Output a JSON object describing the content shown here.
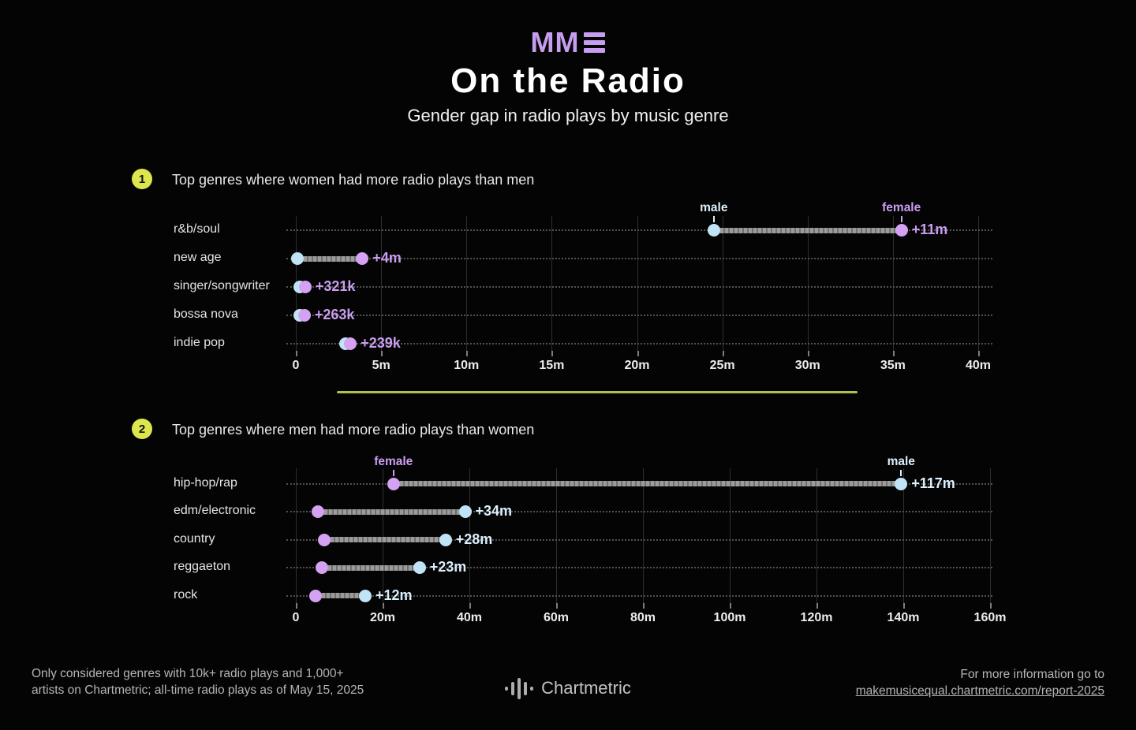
{
  "header": {
    "logo_text": "MM",
    "title": "On the Radio",
    "subtitle": "Gender gap in radio plays by music genre"
  },
  "colors": {
    "male_dot": "#c0e4f6",
    "female_dot": "#d5a1f3",
    "male_label": "#daeefb",
    "female_label": "#cb9df1",
    "connector": "#9b9b9b",
    "accent_yellow": "#dce74d",
    "divider": "#b3bf48",
    "logo_purple": "#c79df0"
  },
  "chart_data": [
    {
      "type": "dumbbell",
      "section_number": "1",
      "section_title": "Top genres where women had more radio plays than men",
      "xlabel": "all-time radio plays",
      "xmax": 40,
      "ticks": [
        "0",
        "5m",
        "10m",
        "15m",
        "20m",
        "25m",
        "30m",
        "35m",
        "40m"
      ],
      "leader_gender": "female",
      "annotations": [
        {
          "gender": "male",
          "label": "male"
        },
        {
          "gender": "female",
          "label": "female"
        }
      ],
      "rows": [
        {
          "genre": "r&b/soul",
          "male": 24.5,
          "female": 35.5,
          "diff_label": "+11m"
        },
        {
          "genre": "new age",
          "male": 0.1,
          "female": 3.9,
          "diff_label": "+4m"
        },
        {
          "genre": "singer/songwriter",
          "male": 0.25,
          "female": 0.55,
          "diff_label": "+321k"
        },
        {
          "genre": "bossa nova",
          "male": 0.25,
          "female": 0.5,
          "diff_label": "+263k"
        },
        {
          "genre": "indie pop",
          "male": 2.9,
          "female": 3.2,
          "diff_label": "+239k"
        }
      ]
    },
    {
      "type": "dumbbell",
      "section_number": "2",
      "section_title": "Top genres where men had more radio plays than women",
      "xlabel": "all-time radio plays",
      "xmax": 160,
      "ticks": [
        "0",
        "20m",
        "40m",
        "60m",
        "80m",
        "100m",
        "120m",
        "140m",
        "160m"
      ],
      "leader_gender": "male",
      "annotations": [
        {
          "gender": "female",
          "label": "female"
        },
        {
          "gender": "male",
          "label": "male"
        }
      ],
      "rows": [
        {
          "genre": "hip-hop/rap",
          "male": 139.5,
          "female": 22.5,
          "diff_label": "+117m"
        },
        {
          "genre": "edm/electronic",
          "male": 39,
          "female": 5,
          "diff_label": "+34m"
        },
        {
          "genre": "country",
          "male": 34.5,
          "female": 6.5,
          "diff_label": "+28m"
        },
        {
          "genre": "reggaeton",
          "male": 28.5,
          "female": 6,
          "diff_label": "+23m"
        },
        {
          "genre": "rock",
          "male": 16,
          "female": 4.5,
          "diff_label": "+12m"
        }
      ]
    }
  ],
  "footer": {
    "note_line1": "Only considered genres with 10k+ radio plays and 1,000+",
    "note_line2": "artists on Chartmetric; all-time radio plays as of May 15, 2025",
    "brand": "Chartmetric",
    "info_line1": "For more information go to",
    "info_link": "makemusicequal.chartmetric.com/report-2025"
  }
}
